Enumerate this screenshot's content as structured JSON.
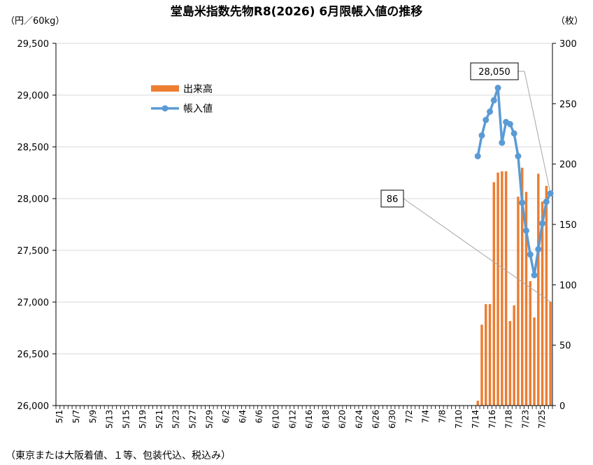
{
  "chart_data": {
    "type": "bar+line",
    "title": "堂島米指数先物R8(2026) 6月限帳入値の推移",
    "ylabel_left": "（円／60kg）",
    "ylabel_right": "（枚）",
    "ylim_left": [
      26000,
      29500
    ],
    "ylim_right": [
      0,
      300
    ],
    "yticks_left": [
      "26,000",
      "26,500",
      "27,000",
      "27,500",
      "28,000",
      "28,500",
      "29,000",
      "29,500"
    ],
    "yticks_right": [
      "0",
      "50",
      "100",
      "150",
      "200",
      "250",
      "300"
    ],
    "x_tick_labels": [
      "5/1",
      "5/7",
      "5/9",
      "5/13",
      "5/15",
      "5/19",
      "5/21",
      "5/23",
      "5/27",
      "5/29",
      "6/2",
      "6/4",
      "6/6",
      "6/10",
      "6/12",
      "6/16",
      "6/18",
      "6/20",
      "6/24",
      "6/26",
      "6/30",
      "7/2",
      "7/4",
      "7/8",
      "7/10",
      "7/14",
      "7/16",
      "7/18",
      "7/23",
      "7/25"
    ],
    "series": [
      {
        "name": "出来高",
        "axis": "right",
        "type": "bar",
        "color": "#ED7D31",
        "values": [
          4,
          67,
          84,
          84,
          185,
          193,
          194,
          194,
          70,
          83,
          173,
          197,
          177,
          103,
          73,
          192,
          169,
          182,
          86
        ]
      },
      {
        "name": "帳入値",
        "axis": "left",
        "type": "line",
        "color": "#5B9BD5",
        "values": [
          28410,
          28610,
          28760,
          28840,
          28950,
          29070,
          28540,
          28740,
          28720,
          28630,
          28410,
          27960,
          27690,
          27460,
          27260,
          27510,
          27760,
          27970,
          28050
        ]
      }
    ],
    "annotations": [
      {
        "text": "28,050",
        "target": "帳入値 last"
      },
      {
        "text": "86",
        "target": "出来高 last"
      }
    ],
    "footnote": "（東京または大阪着値、１等、包装代込、税込み）",
    "legend_position": "upper-left-inside"
  }
}
